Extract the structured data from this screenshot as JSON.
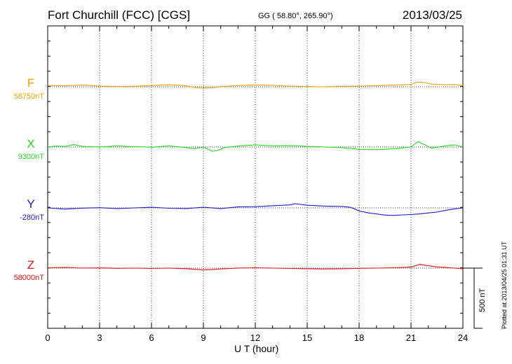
{
  "header": {
    "title": "Fort Churchill (FCC)  [CGS]",
    "coords": "GG ( 58.80°, 265.90°)",
    "date": "2013/03/25"
  },
  "footer": {
    "plotted": "Plotted at 2013/04/25 01:31  UT"
  },
  "colors": {
    "F": "#f5a300",
    "X": "#22dd22",
    "Y": "#1a1acc",
    "Z": "#e01010"
  },
  "chart_data": {
    "type": "line",
    "title": "Fort Churchill (FCC)  [CGS]",
    "xlabel": "U T (hour)",
    "ylabel": "",
    "xlim": [
      0,
      24
    ],
    "x_ticks": [
      "0",
      "3",
      "6",
      "9",
      "12",
      "15",
      "18",
      "21",
      "24"
    ],
    "scale_bar": {
      "value": 500,
      "label": "500 nT"
    },
    "grid": "vertical dotted at 3-hour intervals",
    "series": [
      {
        "name": "F",
        "baseline_label": "58750nT",
        "baseline": 58750,
        "x": [
          0,
          1,
          2,
          3,
          4,
          5,
          6,
          7,
          8,
          8.5,
          9,
          9.5,
          10,
          11,
          12,
          13,
          14,
          15,
          16,
          17,
          18,
          19,
          20,
          21,
          21.4,
          21.8,
          22.2,
          23,
          23.5,
          24
        ],
        "values": [
          58760,
          58758,
          58765,
          58755,
          58752,
          58754,
          58760,
          58768,
          58758,
          58745,
          58738,
          58742,
          58752,
          58760,
          58765,
          58762,
          58756,
          58752,
          58750,
          58754,
          58756,
          58760,
          58764,
          58770,
          58790,
          58785,
          58772,
          58768,
          58770,
          58760
        ]
      },
      {
        "name": "X",
        "baseline_label": "9300nT",
        "baseline": 9300,
        "x": [
          0,
          0.5,
          1,
          1.5,
          2,
          3,
          4,
          5,
          6,
          7,
          8,
          8.5,
          9,
          9.5,
          9.8,
          10.2,
          11,
          12,
          13,
          14,
          15,
          16,
          17,
          18,
          19,
          20,
          21,
          21.4,
          21.7,
          22.2,
          23,
          23.5,
          24
        ],
        "values": [
          9300,
          9308,
          9305,
          9320,
          9305,
          9300,
          9310,
          9303,
          9298,
          9310,
          9295,
          9285,
          9300,
          9265,
          9270,
          9295,
          9308,
          9318,
          9310,
          9312,
          9305,
          9300,
          9294,
          9280,
          9278,
          9285,
          9300,
          9345,
          9325,
          9290,
          9310,
          9318,
          9300
        ]
      },
      {
        "name": "Y",
        "baseline_label": "-280nT",
        "baseline": -280,
        "x": [
          0,
          1,
          2,
          3,
          4,
          5,
          6,
          7,
          8,
          9,
          10,
          11,
          12,
          13,
          14,
          14.3,
          15,
          16,
          17,
          17.5,
          18,
          18.5,
          19,
          19.5,
          20,
          20.5,
          21,
          21.5,
          22,
          22.5,
          23,
          23.5,
          24
        ],
        "values": [
          -280,
          -290,
          -282,
          -278,
          -285,
          -280,
          -275,
          -283,
          -285,
          -275,
          -285,
          -272,
          -270,
          -262,
          -255,
          -245,
          -258,
          -265,
          -268,
          -275,
          -305,
          -320,
          -330,
          -340,
          -342,
          -338,
          -335,
          -330,
          -322,
          -315,
          -300,
          -288,
          -280
        ]
      },
      {
        "name": "Z",
        "baseline_label": "58000nT",
        "baseline": 58000,
        "x": [
          0,
          1,
          2,
          3,
          4,
          5,
          6,
          7,
          8,
          9,
          9.5,
          10,
          11,
          12,
          13,
          14,
          15,
          16,
          17,
          18,
          19,
          20,
          21,
          21.5,
          22,
          22.5,
          23,
          23.5,
          24
        ],
        "values": [
          58002,
          58005,
          58000,
          58002,
          57998,
          58000,
          57997,
          58000,
          57995,
          57985,
          57988,
          57993,
          58000,
          58003,
          58000,
          57997,
          57995,
          57993,
          57995,
          57998,
          58000,
          58003,
          58008,
          58030,
          58020,
          58010,
          58005,
          58000,
          57995
        ]
      }
    ]
  }
}
